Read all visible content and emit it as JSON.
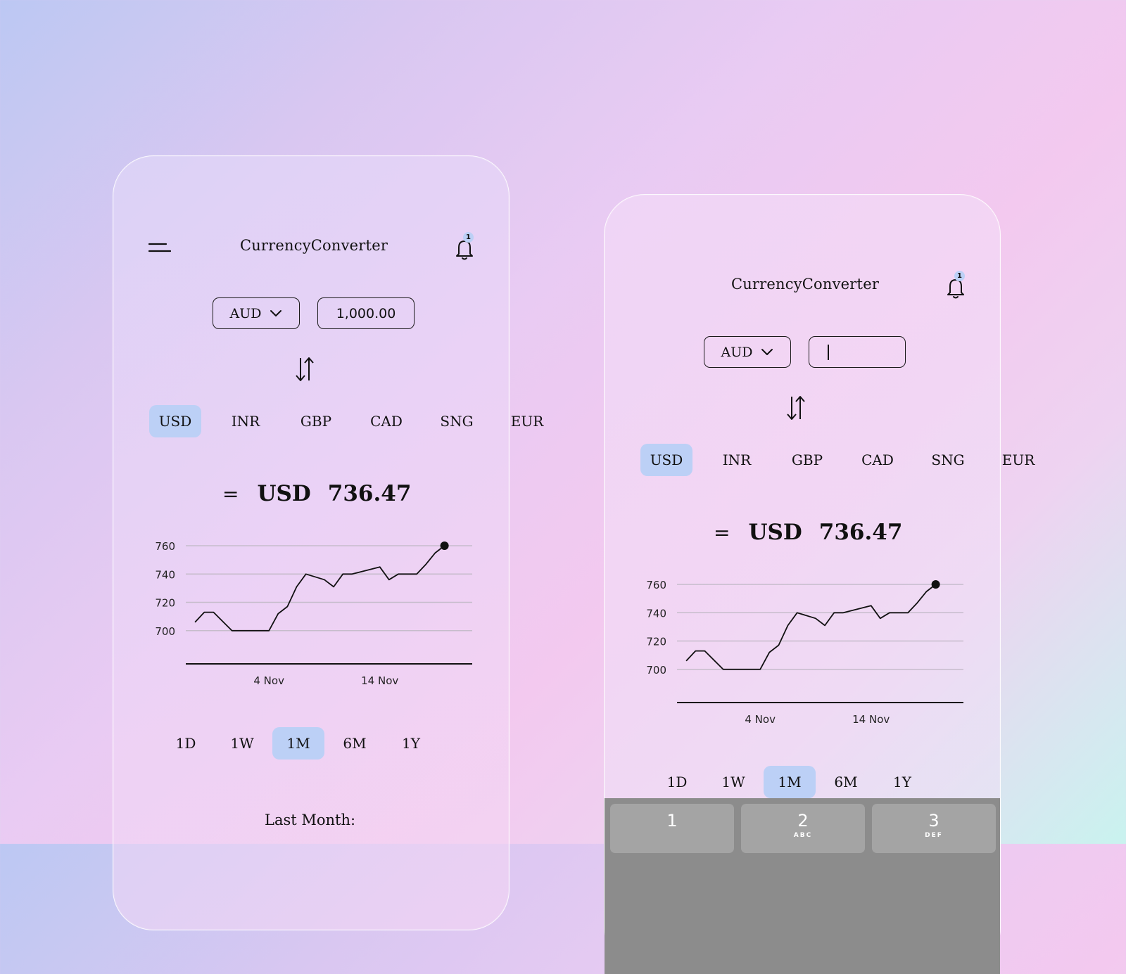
{
  "app": {
    "title": "CurrencyConverter",
    "notification_count": "1"
  },
  "converter": {
    "from_currency": "AUD",
    "amount_value": "1,000.00",
    "amount_value_editing": ""
  },
  "currencies": [
    {
      "code": "USD",
      "selected": true
    },
    {
      "code": "INR",
      "selected": false
    },
    {
      "code": "GBP",
      "selected": false
    },
    {
      "code": "CAD",
      "selected": false
    },
    {
      "code": "SNG",
      "selected": false
    },
    {
      "code": "EUR",
      "selected": false
    }
  ],
  "result": {
    "equals_symbol": "=",
    "currency": "USD",
    "value": "736.47"
  },
  "timeframes": [
    {
      "label": "1D",
      "selected": false
    },
    {
      "label": "1W",
      "selected": false
    },
    {
      "label": "1M",
      "selected": true
    },
    {
      "label": "6M",
      "selected": false
    },
    {
      "label": "1Y",
      "selected": false
    }
  ],
  "summary_label": "Last Month:",
  "keyboard": {
    "keys": [
      {
        "num": "1",
        "letters": ""
      },
      {
        "num": "2",
        "letters": "ABC"
      },
      {
        "num": "3",
        "letters": "DEF"
      }
    ]
  },
  "colors": {
    "accent": "#bcd0f6",
    "text": "#111111"
  },
  "chart_data": {
    "type": "line",
    "yticks": [
      700,
      720,
      740,
      760
    ],
    "ylim": [
      680,
      762
    ],
    "grid": true,
    "xticks": [
      {
        "label": "4 Nov",
        "x": 9
      },
      {
        "label": "14 Nov",
        "x": 21
      }
    ],
    "xlim": [
      0,
      31
    ],
    "points": [
      [
        1,
        706
      ],
      [
        2,
        713
      ],
      [
        3,
        713
      ],
      [
        5,
        700
      ],
      [
        7,
        700
      ],
      [
        9,
        700
      ],
      [
        10,
        712
      ],
      [
        11,
        717
      ],
      [
        12,
        731
      ],
      [
        13,
        740
      ],
      [
        15,
        736
      ],
      [
        16,
        731
      ],
      [
        17,
        740
      ],
      [
        18,
        740
      ],
      [
        21,
        745
      ],
      [
        22,
        736
      ],
      [
        23,
        740
      ],
      [
        25,
        740
      ],
      [
        26,
        747
      ],
      [
        27,
        755
      ],
      [
        28,
        760
      ]
    ]
  }
}
